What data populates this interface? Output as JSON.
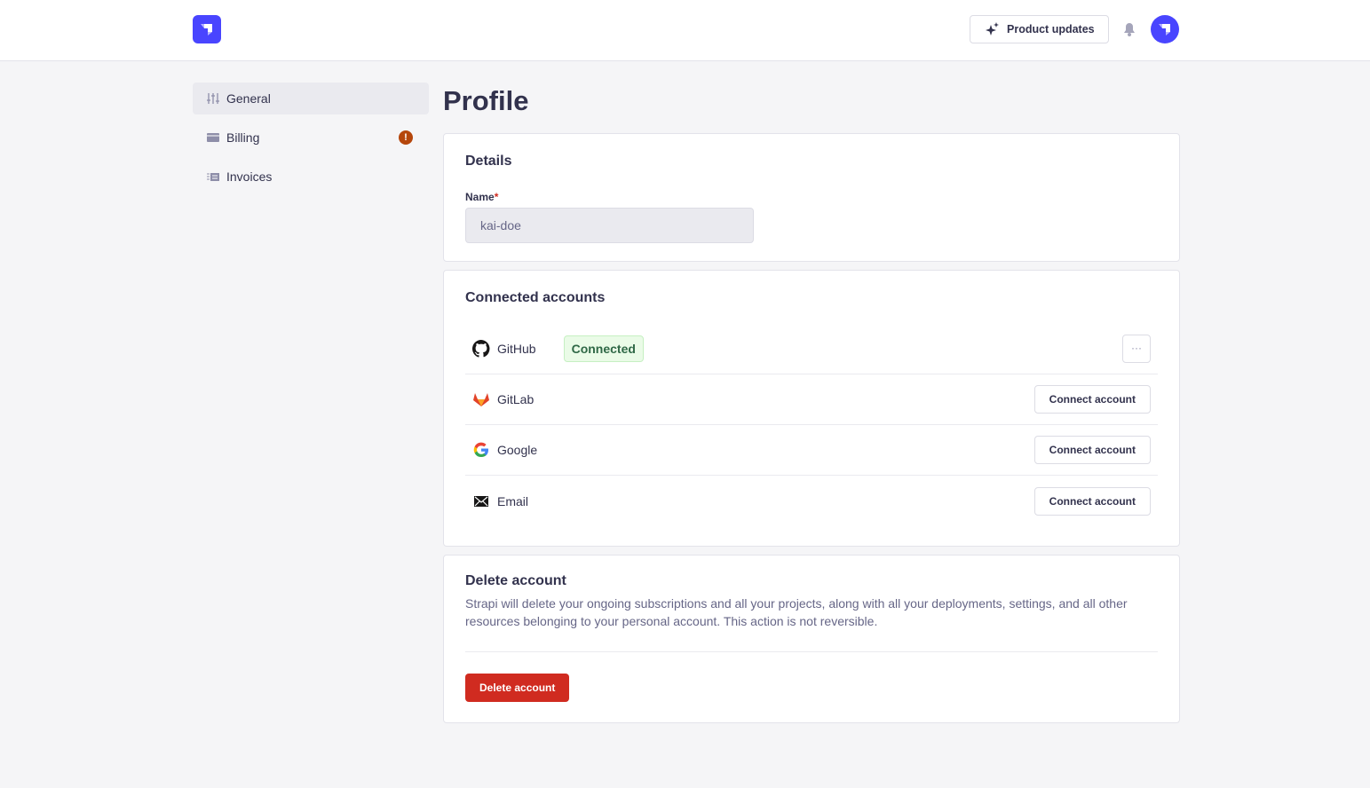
{
  "header": {
    "product_updates": "Product updates"
  },
  "sidebar": {
    "items": [
      {
        "label": "General",
        "active": true
      },
      {
        "label": "Billing",
        "badge": "!"
      },
      {
        "label": "Invoices"
      }
    ]
  },
  "page": {
    "title": "Profile"
  },
  "details": {
    "title": "Details",
    "name_label": "Name",
    "required_mark": "*",
    "name_value": "kai-doe"
  },
  "connected": {
    "title": "Connected accounts",
    "accounts": [
      {
        "name": "GitHub",
        "status": "Connected",
        "more": "···"
      },
      {
        "name": "GitLab",
        "action": "Connect account"
      },
      {
        "name": "Google",
        "action": "Connect account"
      },
      {
        "name": "Email",
        "action": "Connect account"
      }
    ]
  },
  "delete": {
    "title": "Delete account",
    "description": "Strapi will delete your ongoing subscriptions and all your projects, along with all your deployments, settings, and all other resources belonging to your personal account. This action is not reversible.",
    "button": "Delete account"
  },
  "colors": {
    "brand": "#4945ff",
    "danger": "#d02b20",
    "warning": "#b5460b",
    "success_bg": "#eafbe7"
  }
}
